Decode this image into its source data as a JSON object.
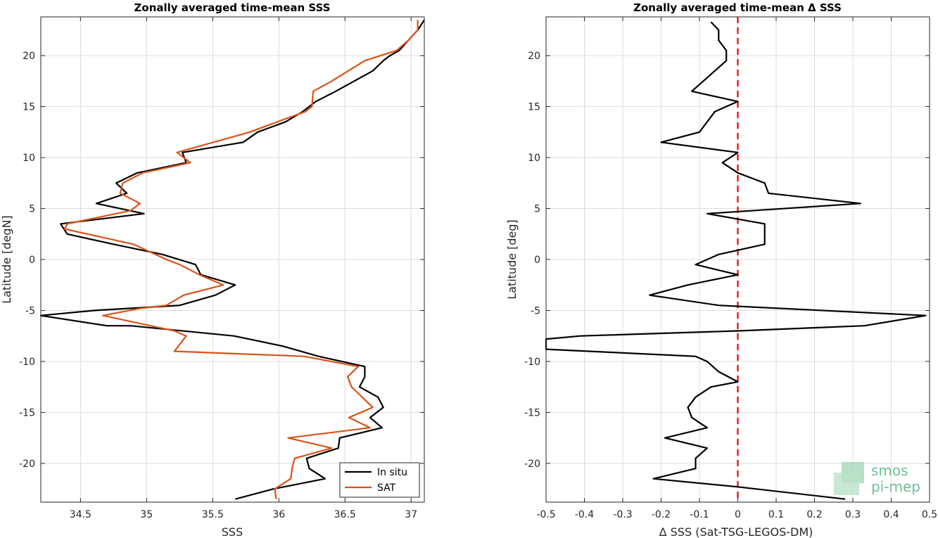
{
  "chart_data": [
    {
      "type": "line",
      "title": "Zonally averaged time-mean SSS",
      "xlabel": "SSS",
      "ylabel": "Latitude [degN]",
      "xlim": [
        34.2,
        37.1
      ],
      "ylim": [
        -23.8,
        23.8
      ],
      "xticks": [
        34.5,
        35,
        35.5,
        36,
        36.5,
        37
      ],
      "xtick_labels": [
        "34.5",
        "35",
        "35.5",
        "36",
        "36.5",
        "37"
      ],
      "yticks": [
        -20,
        -15,
        -10,
        -5,
        0,
        5,
        10,
        15,
        20
      ],
      "ytick_labels": [
        "-20",
        "-15",
        "-10",
        "-5",
        "0",
        "5",
        "10",
        "15",
        "20"
      ],
      "grid": true,
      "legend": {
        "placement": "bottom-right",
        "entries": [
          "In situ",
          "SAT"
        ]
      },
      "series": [
        {
          "name": "In situ",
          "color": "#000000",
          "points": [
            [
              35.67,
              -23.5
            ],
            [
              35.96,
              -22.5
            ],
            [
              36.35,
              -21.5
            ],
            [
              36.23,
              -20.5
            ],
            [
              36.21,
              -19.5
            ],
            [
              36.45,
              -18.5
            ],
            [
              36.46,
              -17.5
            ],
            [
              36.78,
              -16.5
            ],
            [
              36.69,
              -15.5
            ],
            [
              36.79,
              -14.5
            ],
            [
              36.75,
              -13.5
            ],
            [
              36.61,
              -12.5
            ],
            [
              36.65,
              -11.5
            ],
            [
              36.65,
              -10.5
            ],
            [
              36.3,
              -9.5
            ],
            [
              36.03,
              -8.5
            ],
            [
              35.66,
              -7.5
            ],
            [
              34.88,
              -6.5
            ],
            [
              34.7,
              -6.5
            ],
            [
              34.2,
              -5.5
            ],
            [
              34.6,
              -5.0
            ],
            [
              35.25,
              -4.5
            ],
            [
              35.52,
              -3.5
            ],
            [
              35.67,
              -2.5
            ],
            [
              35.41,
              -1.5
            ],
            [
              35.37,
              -0.5
            ],
            [
              35.12,
              0.5
            ],
            [
              34.75,
              1.5
            ],
            [
              34.4,
              2.5
            ],
            [
              34.35,
              3.5
            ],
            [
              34.98,
              4.5
            ],
            [
              34.62,
              5.5
            ],
            [
              34.85,
              6.5
            ],
            [
              34.77,
              7.5
            ],
            [
              34.93,
              8.5
            ],
            [
              35.3,
              9.5
            ],
            [
              35.27,
              10.5
            ],
            [
              35.73,
              11.5
            ],
            [
              35.84,
              12.5
            ],
            [
              36.05,
              13.5
            ],
            [
              36.18,
              14.5
            ],
            [
              36.28,
              15.5
            ],
            [
              36.43,
              16.5
            ],
            [
              36.57,
              17.5
            ],
            [
              36.71,
              18.5
            ],
            [
              36.79,
              19.5
            ],
            [
              36.84,
              20.0
            ],
            [
              36.91,
              20.5
            ],
            [
              36.98,
              21.5
            ],
            [
              37.05,
              22.5
            ],
            [
              37.1,
              23.5
            ]
          ]
        },
        {
          "name": "SAT",
          "color": "#d95319",
          "points": [
            [
              35.98,
              -23.5
            ],
            [
              35.97,
              -22.5
            ],
            [
              36.09,
              -21.5
            ],
            [
              36.1,
              -20.5
            ],
            [
              36.12,
              -19.5
            ],
            [
              36.4,
              -18.5
            ],
            [
              36.07,
              -17.5
            ],
            [
              36.69,
              -16.5
            ],
            [
              36.53,
              -15.5
            ],
            [
              36.71,
              -14.5
            ],
            [
              36.63,
              -13.5
            ],
            [
              36.55,
              -12.5
            ],
            [
              36.52,
              -11.5
            ],
            [
              36.6,
              -10.5
            ],
            [
              36.19,
              -9.5
            ],
            [
              35.21,
              -9.0
            ],
            [
              35.3,
              -7.5
            ],
            [
              35.21,
              -7.0
            ],
            [
              35.03,
              -6.5
            ],
            [
              34.67,
              -5.5
            ],
            [
              34.95,
              -4.8
            ],
            [
              35.15,
              -4.5
            ],
            [
              35.28,
              -3.5
            ],
            [
              35.58,
              -2.5
            ],
            [
              35.4,
              -1.5
            ],
            [
              35.25,
              -0.5
            ],
            [
              35.15,
              0.0
            ],
            [
              34.9,
              1.5
            ],
            [
              34.38,
              3.0
            ],
            [
              34.4,
              3.5
            ],
            [
              34.88,
              4.8
            ],
            [
              34.95,
              5.5
            ],
            [
              34.8,
              6.5
            ],
            [
              34.82,
              7.5
            ],
            [
              34.97,
              8.5
            ],
            [
              35.33,
              9.5
            ],
            [
              35.23,
              10.5
            ],
            [
              35.78,
              12.5
            ],
            [
              36.05,
              13.8
            ],
            [
              36.2,
              14.5
            ],
            [
              36.25,
              15.0
            ],
            [
              36.26,
              16.5
            ],
            [
              36.4,
              17.5
            ],
            [
              36.65,
              19.5
            ],
            [
              36.89,
              20.5
            ],
            [
              36.98,
              21.5
            ],
            [
              37.05,
              22.5
            ],
            [
              37.05,
              23.5
            ]
          ]
        }
      ]
    },
    {
      "type": "line",
      "title": "Zonally averaged time-mean Δ SSS",
      "xlabel": "Δ SSS (Sat-TSG-LEGOS-DM)",
      "ylabel": "Latitude [deg]",
      "xlim": [
        -0.5,
        0.5
      ],
      "ylim": [
        -23.8,
        23.8
      ],
      "xticks": [
        -0.5,
        -0.4,
        -0.3,
        -0.2,
        -0.1,
        0,
        0.1,
        0.2,
        0.3,
        0.4,
        0.5
      ],
      "xtick_labels": [
        "-0.5",
        "-0.4",
        "-0.3",
        "-0.2",
        "-0.1",
        "0",
        "0.1",
        "0.2",
        "0.3",
        "0.4",
        "0.5"
      ],
      "yticks": [
        -20,
        -15,
        -10,
        -5,
        0,
        5,
        10,
        15,
        20
      ],
      "ytick_labels": [
        "-20",
        "-15",
        "-10",
        "-5",
        "0",
        "5",
        "10",
        "15",
        "20"
      ],
      "grid": true,
      "reference_line": {
        "x": 0,
        "color": "#e32222",
        "style": "dashed"
      },
      "series": [
        {
          "color": "#000000",
          "points": [
            [
              0.28,
              -23.5
            ],
            [
              0.0,
              -22.3
            ],
            [
              -0.22,
              -21.5
            ],
            [
              -0.11,
              -20.5
            ],
            [
              -0.11,
              -19.5
            ],
            [
              -0.08,
              -18.5
            ],
            [
              -0.19,
              -17.5
            ],
            [
              -0.08,
              -16.5
            ],
            [
              -0.12,
              -15.5
            ],
            [
              -0.13,
              -14.5
            ],
            [
              -0.11,
              -13.5
            ],
            [
              -0.07,
              -12.5
            ],
            [
              0.0,
              -12.0
            ],
            [
              -0.05,
              -11.0
            ],
            [
              -0.08,
              -10.0
            ],
            [
              -0.11,
              -9.5
            ],
            [
              -0.5,
              -8.8
            ],
            [
              -0.5,
              -7.8
            ],
            [
              -0.41,
              -7.5
            ],
            [
              0.0,
              -7.0
            ],
            [
              0.33,
              -6.5
            ],
            [
              0.49,
              -5.5
            ],
            [
              -0.05,
              -4.5
            ],
            [
              -0.23,
              -3.5
            ],
            [
              -0.13,
              -2.5
            ],
            [
              0.0,
              -1.5
            ],
            [
              -0.11,
              -0.5
            ],
            [
              -0.05,
              0.5
            ],
            [
              0.07,
              1.5
            ],
            [
              0.07,
              2.5
            ],
            [
              0.07,
              3.5
            ],
            [
              -0.08,
              4.5
            ],
            [
              0.32,
              5.5
            ],
            [
              0.08,
              6.5
            ],
            [
              0.07,
              7.5
            ],
            [
              0.0,
              8.5
            ],
            [
              -0.04,
              9.5
            ],
            [
              0.0,
              10.5
            ],
            [
              -0.2,
              11.5
            ],
            [
              -0.1,
              12.5
            ],
            [
              -0.08,
              13.5
            ],
            [
              -0.06,
              14.5
            ],
            [
              0.0,
              15.5
            ],
            [
              -0.12,
              16.5
            ],
            [
              -0.09,
              17.5
            ],
            [
              -0.06,
              18.5
            ],
            [
              -0.03,
              19.5
            ],
            [
              -0.03,
              20.5
            ],
            [
              -0.05,
              21.5
            ],
            [
              -0.05,
              22.5
            ],
            [
              -0.07,
              23.3
            ]
          ]
        }
      ]
    }
  ],
  "logo": {
    "line1": "smos",
    "line2": "pi-mep"
  }
}
